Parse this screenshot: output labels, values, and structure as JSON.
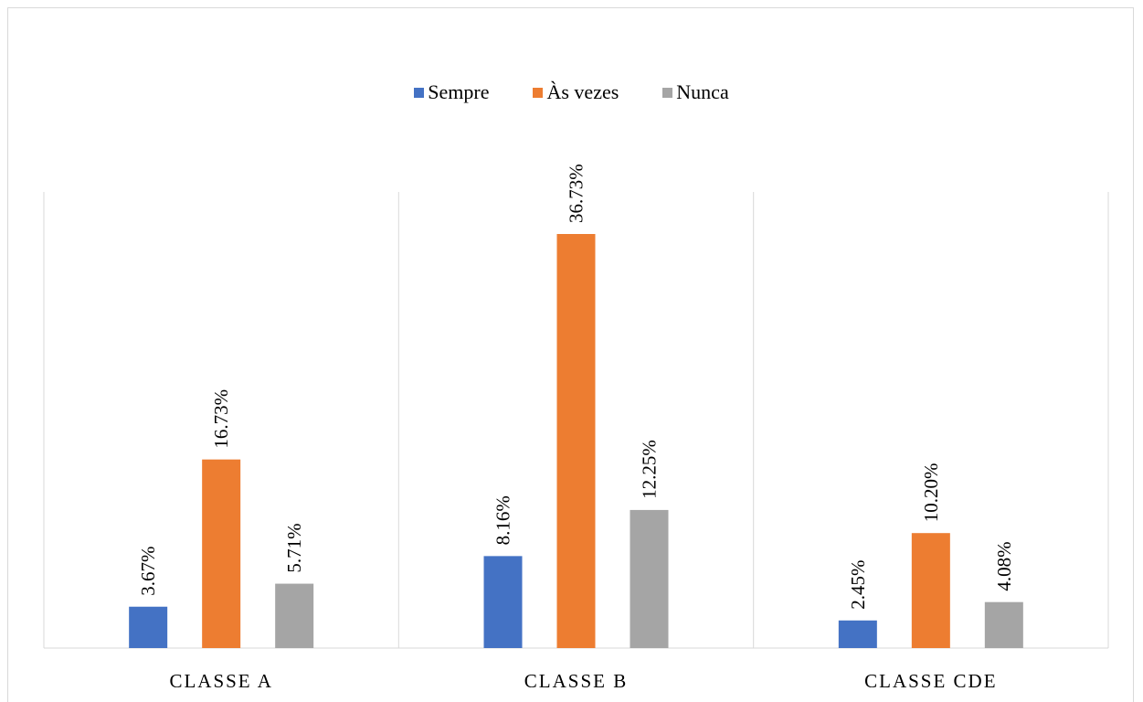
{
  "chart_data": {
    "type": "bar",
    "categories": [
      "CLASSE A",
      "CLASSE B",
      "CLASSE CDE"
    ],
    "series": [
      {
        "name": "Sempre",
        "color": "#4472c4",
        "values": [
          3.67,
          8.16,
          2.45
        ],
        "labels": [
          "3.67%",
          "8.16%",
          "2.45%"
        ]
      },
      {
        "name": "Às vezes",
        "color": "#ed7d31",
        "values": [
          16.73,
          36.73,
          10.2
        ],
        "labels": [
          "16.73%",
          "36.73%",
          "10.20%"
        ]
      },
      {
        "name": "Nunca",
        "color": "#a5a5a5",
        "values": [
          5.71,
          12.25,
          4.08
        ],
        "labels": [
          "5.71%",
          "12.25%",
          "4.08%"
        ]
      }
    ],
    "ylim": [
      0,
      40
    ],
    "grid": "vertical category separators",
    "legend_position": "top"
  }
}
